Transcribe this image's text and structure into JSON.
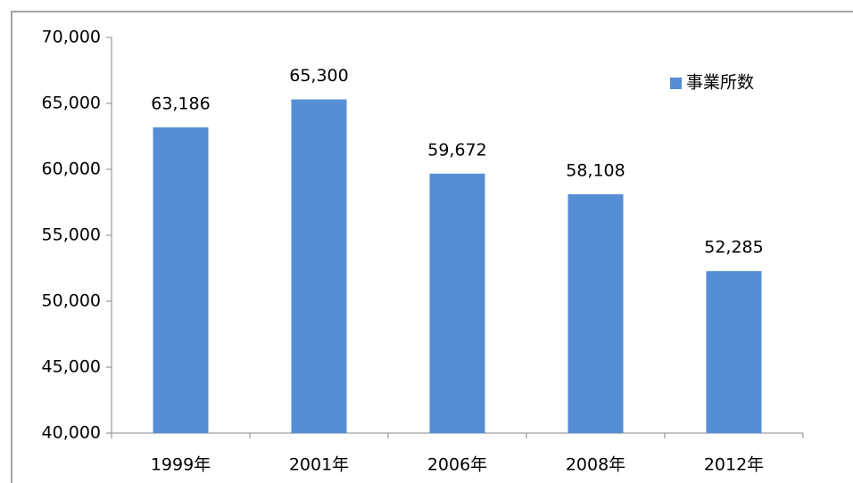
{
  "chart_data": {
    "type": "bar",
    "categories": [
      "1999年",
      "2001年",
      "2006年",
      "2008年",
      "2012年"
    ],
    "series": [
      {
        "name": "事業所数",
        "color": "#558ed5",
        "values": [
          63186,
          65300,
          59672,
          58108,
          52285
        ],
        "value_labels": [
          "63,186",
          "65,300",
          "59,672",
          "58,108",
          "52,285"
        ]
      }
    ],
    "ylim": [
      40000,
      70000
    ],
    "yticks": [
      {
        "value": 40000,
        "label": "40,000"
      },
      {
        "value": 45000,
        "label": "45,000"
      },
      {
        "value": 50000,
        "label": "50,000"
      },
      {
        "value": 55000,
        "label": "55,000"
      },
      {
        "value": 60000,
        "label": "60,000"
      },
      {
        "value": 65000,
        "label": "65,000"
      },
      {
        "value": 70000,
        "label": "70,000"
      }
    ],
    "grid": false,
    "legend": "upper right"
  }
}
